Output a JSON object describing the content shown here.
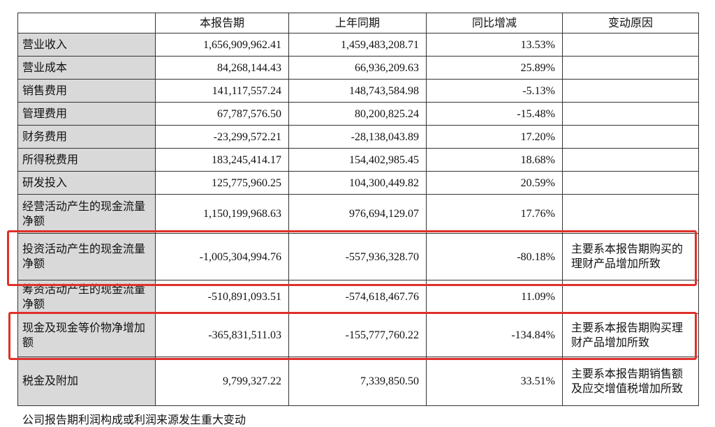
{
  "table": {
    "header": [
      "",
      "本报告期",
      "上年同期",
      "同比增减",
      "变动原因"
    ],
    "rows": [
      [
        "营业收入",
        "1,656,909,962.41",
        "1,459,483,208.71",
        "13.53%",
        ""
      ],
      [
        "营业成本",
        "84,268,144.43",
        "66,936,209.63",
        "25.89%",
        ""
      ],
      [
        "销售费用",
        "141,117,557.24",
        "148,743,584.98",
        "-5.13%",
        ""
      ],
      [
        "管理费用",
        "67,787,576.50",
        "80,200,825.24",
        "-15.48%",
        ""
      ],
      [
        "财务费用",
        "-23,299,572.21",
        "-28,138,043.89",
        "17.20%",
        ""
      ],
      [
        "所得税费用",
        "183,245,414.17",
        "154,402,985.45",
        "18.68%",
        ""
      ],
      [
        "研发投入",
        "125,775,960.25",
        "104,300,449.82",
        "20.59%",
        ""
      ],
      [
        "经营活动产生的现金流量净额",
        "1,150,199,968.63",
        "976,694,129.07",
        "17.76%",
        ""
      ],
      [
        "投资活动产生的现金流量净额",
        "-1,005,304,994.76",
        "-557,936,328.70",
        "-80.18%",
        "主要系本报告期购买的理财产品增加所致"
      ],
      [
        "筹资活动产生的现金流量净额",
        "-510,891,093.51",
        "-574,618,467.76",
        "11.09%",
        ""
      ],
      [
        "现金及现金等价物净增加额",
        "-365,831,511.03",
        "-155,777,760.22",
        "-134.84%",
        "主要系本报告期购买理财产品增加所致"
      ],
      [
        "税金及附加",
        "9,799,327.22",
        "7,339,850.50",
        "33.51%",
        "主要系本报告期销售额及应交增值税增加所致"
      ]
    ]
  },
  "note": "公司报告期利润构成或利润来源发生重大变动"
}
